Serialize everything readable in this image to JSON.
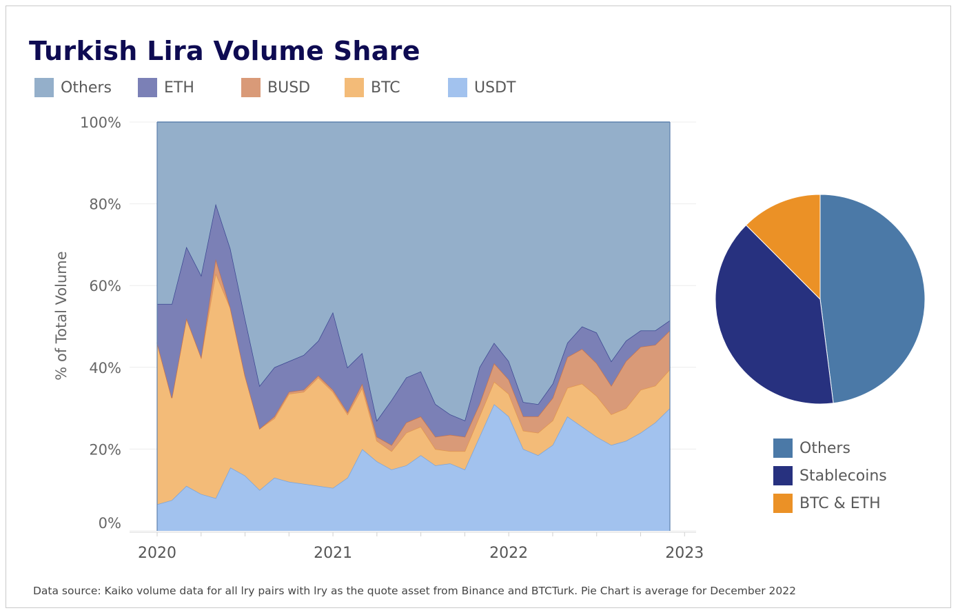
{
  "title": "Turkish Lira Volume Share",
  "source": "Data source: Kaiko volume data for all lry pairs with lry as the quote asset from Binance and BTCTurk. Pie Chart is average for December 2022",
  "chart_data": [
    {
      "type": "area",
      "stacked": true,
      "ylabel": "% of Total Volume",
      "ylim": [
        0,
        100
      ],
      "y_ticks": [
        "0%",
        "20%",
        "40%",
        "60%",
        "80%",
        "100%"
      ],
      "x_ticks": [
        "2020",
        "2021",
        "2022",
        "2023"
      ],
      "grid": true,
      "legend_position": "top",
      "x": [
        "2020-01",
        "2020-02",
        "2020-03",
        "2020-04",
        "2020-05",
        "2020-06",
        "2020-07",
        "2020-08",
        "2020-09",
        "2020-10",
        "2020-11",
        "2020-12",
        "2021-01",
        "2021-02",
        "2021-03",
        "2021-04",
        "2021-05",
        "2021-06",
        "2021-07",
        "2021-08",
        "2021-09",
        "2021-10",
        "2021-11",
        "2021-12",
        "2022-01",
        "2022-02",
        "2022-03",
        "2022-04",
        "2022-05",
        "2022-06",
        "2022-07",
        "2022-08",
        "2022-09",
        "2022-10",
        "2022-11",
        "2022-12"
      ],
      "series": [
        {
          "name": "USDT",
          "color": "#a2c2ee",
          "values": [
            6.5,
            7.5,
            11,
            9,
            8,
            15.5,
            13.5,
            10,
            13,
            12,
            11.5,
            11,
            10.5,
            13,
            20,
            17,
            15,
            16,
            18.5,
            16,
            16.5,
            15,
            23,
            31,
            28,
            20,
            18.5,
            21,
            28,
            25.5,
            23,
            21,
            22,
            24,
            26.5,
            30
          ]
        },
        {
          "name": "BTC",
          "color": "#f3bb78",
          "values": [
            39.5,
            25,
            41,
            33.5,
            55,
            39,
            24.5,
            15,
            14.5,
            21.5,
            22.5,
            26.5,
            23.5,
            15.5,
            15,
            5,
            4.5,
            8,
            7,
            4,
            3,
            4.5,
            5,
            5.5,
            5.5,
            4.5,
            5.5,
            6,
            7,
            10.5,
            10,
            7.5,
            8,
            10.5,
            9,
            9.5
          ]
        },
        {
          "name": "BUSD",
          "color": "#d99a78",
          "values": [
            0,
            0,
            0,
            0,
            3.5,
            0,
            0,
            0,
            0.5,
            0.5,
            0.5,
            0.5,
            0.5,
            0.5,
            1,
            1,
            1.5,
            2.5,
            2.5,
            3,
            4,
            3.5,
            3,
            4.5,
            3.5,
            3.5,
            4,
            5.5,
            7.5,
            8.5,
            8,
            7,
            11.5,
            10.5,
            10,
            9.5
          ]
        },
        {
          "name": "ETH",
          "color": "#7b80b6",
          "values": [
            9.5,
            23,
            17.5,
            20,
            13.5,
            14.5,
            14,
            10.5,
            12,
            7.5,
            8.5,
            8.5,
            19,
            11,
            7.5,
            4,
            11,
            11,
            11,
            8,
            5,
            4,
            9,
            5,
            4.5,
            3.5,
            3,
            3.5,
            3.5,
            5.5,
            7.5,
            6,
            5,
            4,
            3.5,
            2.5
          ]
        },
        {
          "name": "Others",
          "color": "#94afca",
          "values": [
            44.5,
            44.5,
            30.5,
            37.5,
            20,
            31,
            48,
            64.5,
            60,
            58.5,
            57,
            53.5,
            46.5,
            60,
            56.5,
            73,
            68,
            62.5,
            61,
            69,
            71.5,
            73,
            60,
            54,
            58.5,
            68.5,
            69,
            64,
            54,
            50,
            51.5,
            58.5,
            53.5,
            51,
            51,
            48.5
          ]
        }
      ]
    },
    {
      "type": "pie",
      "legend_position": "bottom",
      "slices": [
        {
          "name": "Others",
          "value": 48,
          "color": "#4b79a7"
        },
        {
          "name": "Stablecoins",
          "value": 39.5,
          "color": "#27317f"
        },
        {
          "name": "BTC & ETH",
          "value": 12.5,
          "color": "#eb9126"
        }
      ]
    }
  ]
}
